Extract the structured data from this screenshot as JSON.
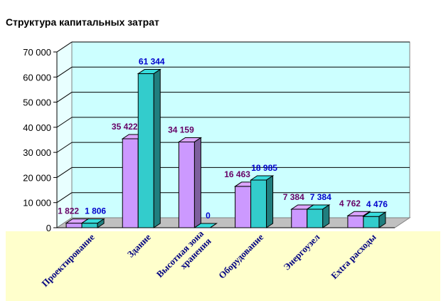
{
  "chart_data": {
    "type": "bar",
    "title": "Структура капитальных затрат",
    "categories": [
      "Проектирование",
      "Здание",
      "Высотная зона хранения",
      "Оборудование",
      "Энергоузел",
      "Extra расходы"
    ],
    "category_lines": [
      [
        "Проектирование"
      ],
      [
        "Здание"
      ],
      [
        "Высотная зона",
        "хранения"
      ],
      [
        "Оборудование"
      ],
      [
        "Энергоузел"
      ],
      [
        "Extra расходы"
      ]
    ],
    "series": [
      {
        "values": [
          1822,
          35422,
          34159,
          16463,
          7384,
          4762
        ],
        "labels": [
          "1 822",
          "35 422",
          "34 159",
          "16 463",
          "7 384",
          "4 762"
        ],
        "color": "#cc99ff",
        "label_color": "#660066"
      },
      {
        "values": [
          1806,
          61344,
          0,
          18985,
          7384,
          4476
        ],
        "labels": [
          "1 806",
          "61 344",
          "0",
          "18 985",
          "7 384",
          "4 476"
        ],
        "color": "#33cccc",
        "label_color": "#0000cc"
      }
    ],
    "ylim": [
      0,
      70000
    ],
    "yticks": [
      0,
      10000,
      20000,
      30000,
      40000,
      50000,
      60000,
      70000
    ],
    "ytick_labels": [
      "0",
      "10 000",
      "20 000",
      "30 000",
      "40 000",
      "50 000",
      "60 000",
      "70 000"
    ],
    "grid": true,
    "legend": "none",
    "colors": {
      "wall": "#ccffff",
      "floor_band": "#ffffcc",
      "grid": "#000000"
    }
  }
}
